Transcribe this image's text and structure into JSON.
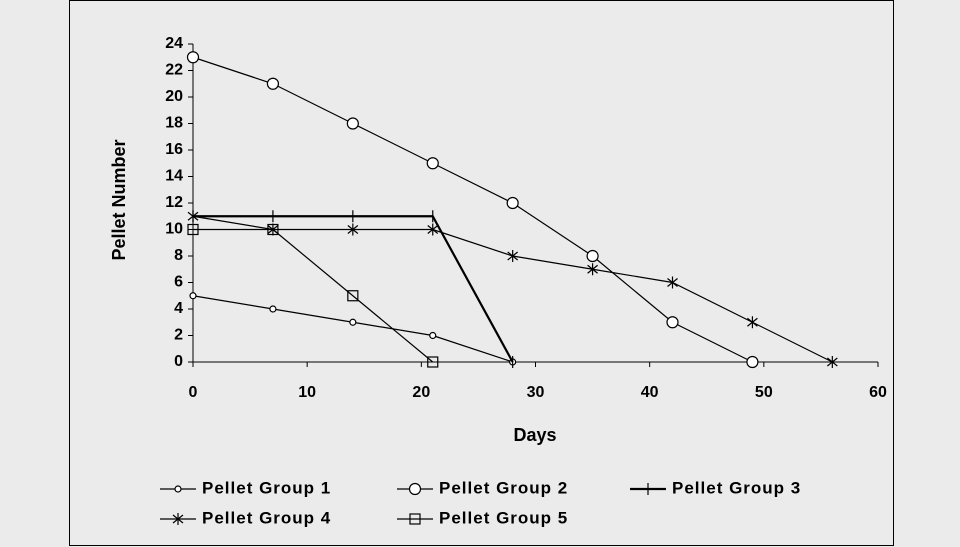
{
  "chart_data": {
    "type": "line",
    "x_label": "Days",
    "y_label": "Pellet Number",
    "xlim": [
      0,
      60
    ],
    "xticks": [
      0,
      10,
      20,
      30,
      40,
      50,
      60
    ],
    "ylim": [
      0,
      24
    ],
    "yticks": [
      0,
      2,
      4,
      6,
      8,
      10,
      12,
      14,
      16,
      18,
      20,
      22,
      24
    ],
    "grid": false,
    "legend": "bottom",
    "series": [
      {
        "name": "Pellet Group 1",
        "color": "#000000",
        "marker": "small-circle",
        "x": [
          0,
          7,
          14,
          21,
          28
        ],
        "values": [
          5,
          4,
          3,
          2,
          0
        ]
      },
      {
        "name": "Pellet Group 2",
        "color": "#000000",
        "marker": "circle",
        "x": [
          0,
          7,
          14,
          21,
          28,
          35,
          42,
          49
        ],
        "values": [
          23,
          21,
          18,
          15,
          12,
          8,
          3,
          0
        ]
      },
      {
        "name": "Pellet Group 3",
        "color": "#000000",
        "marker": "plus",
        "x": [
          0,
          7,
          14,
          21,
          28
        ],
        "values": [
          11,
          11,
          11,
          11,
          0
        ]
      },
      {
        "name": "Pellet Group 4",
        "color": "#000000",
        "marker": "asterisk",
        "x": [
          0,
          7,
          14,
          21,
          28,
          35,
          42,
          49,
          56
        ],
        "values": [
          11,
          10,
          10,
          10,
          8,
          7,
          6,
          3,
          0
        ]
      },
      {
        "name": "Pellet Group 5",
        "color": "#000000",
        "marker": "square",
        "x": [
          0,
          7,
          14,
          21
        ],
        "values": [
          10,
          10,
          5,
          0
        ]
      }
    ]
  }
}
